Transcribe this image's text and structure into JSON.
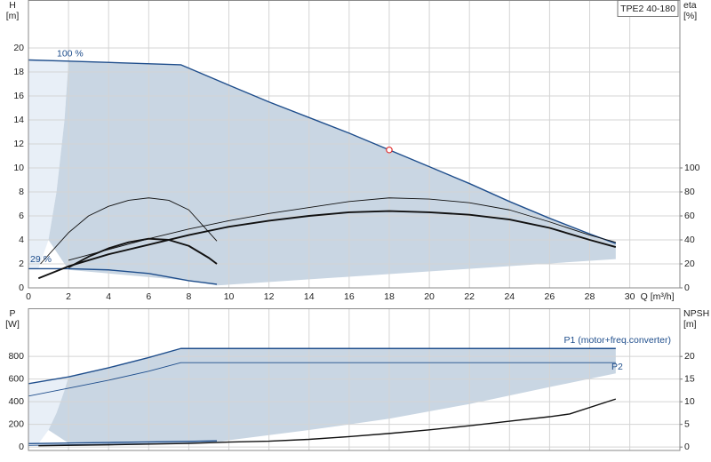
{
  "chart_data": [
    {
      "type": "line",
      "title": "TPE2 40-180",
      "y_label": [
        "H",
        "[m]"
      ],
      "y2_label": [
        "eta",
        "[%]"
      ],
      "x_label": "Q [m³/h]",
      "xlim": [
        0,
        32.5
      ],
      "xticks": [
        0,
        2,
        4,
        6,
        8,
        10,
        12,
        14,
        16,
        18,
        20,
        22,
        24,
        26,
        28,
        30
      ],
      "xtick_labels": true,
      "ylim": [
        0,
        24
      ],
      "yticks": [
        0,
        2,
        4,
        6,
        8,
        10,
        12,
        14,
        16,
        18,
        20
      ],
      "y2lim": [
        0,
        240
      ],
      "y2ticks": [
        0,
        20,
        40,
        60,
        80,
        100
      ],
      "grid": true,
      "regions": [
        {
          "color": "#e8eff7",
          "x": [
            0,
            2,
            1.8,
            1.4,
            1,
            0.5,
            0
          ],
          "values": [
            19,
            18.9,
            14,
            8,
            4,
            1.6,
            1.6
          ]
        },
        {
          "color": "#c9d6e3",
          "x": [
            2,
            7.6,
            10,
            12,
            14,
            16,
            18,
            20,
            22,
            24,
            26,
            28,
            29.3,
            29.3,
            9.4,
            8,
            6,
            4,
            2,
            1,
            1.4,
            1.8,
            2
          ],
          "values": [
            18.9,
            18.6,
            16.9,
            15.5,
            14.2,
            12.9,
            11.5,
            10.1,
            8.7,
            7.2,
            5.8,
            4.5,
            3.7,
            2.4,
            0.2,
            0.6,
            0.9,
            1.2,
            1.5,
            4,
            8,
            14,
            18.9
          ]
        }
      ],
      "series": [
        {
          "name": "100 %",
          "label_at": "start",
          "color": "#1f4e8c",
          "style": "medium",
          "x": [
            0,
            2,
            7.6,
            10,
            12,
            14,
            16,
            18,
            20,
            22,
            24,
            26,
            28,
            29.3
          ],
          "values": [
            19,
            18.9,
            18.6,
            16.9,
            15.5,
            14.2,
            12.9,
            11.5,
            10.1,
            8.7,
            7.2,
            5.8,
            4.5,
            3.7
          ]
        },
        {
          "name": "29 %",
          "label_at": "start-above",
          "color": "#1f4e8c",
          "style": "medium",
          "x": [
            0,
            2,
            4,
            6,
            7,
            8,
            9.4
          ],
          "values": [
            1.6,
            1.6,
            1.5,
            1.2,
            0.9,
            0.6,
            0.3
          ]
        },
        {
          "color": "#111111",
          "style": "thin",
          "axis": "y2",
          "x": [
            2,
            4,
            6,
            8,
            10,
            12,
            14,
            16,
            18,
            20,
            22,
            24,
            26,
            28,
            29.3
          ],
          "values": [
            23,
            32,
            41,
            49,
            56,
            62,
            67,
            72,
            75,
            74,
            71,
            65,
            55,
            44,
            38
          ]
        },
        {
          "color": "#111111",
          "style": "thick",
          "axis": "y2",
          "x": [
            0.5,
            2,
            4,
            6,
            8,
            10,
            12,
            14,
            16,
            18,
            20,
            22,
            24,
            26,
            28,
            29.3
          ],
          "values": [
            8,
            18,
            28,
            36,
            44,
            51,
            56,
            60,
            63,
            64,
            63,
            61,
            57,
            50,
            40,
            34
          ]
        },
        {
          "color": "#111111",
          "style": "thin",
          "axis": "y2",
          "x": [
            0.6,
            2,
            3,
            4,
            5,
            6,
            7,
            8,
            9.4
          ],
          "values": [
            20,
            46,
            60,
            68,
            73,
            75,
            73,
            65,
            39
          ]
        },
        {
          "color": "#111111",
          "style": "thick",
          "axis": "y2",
          "x": [
            2,
            3,
            4,
            5,
            6,
            7,
            8,
            9,
            9.4
          ],
          "values": [
            17,
            26,
            33,
            38,
            41,
            40,
            35,
            25,
            20
          ]
        }
      ],
      "duty_point": {
        "x": 18,
        "value": 11.5,
        "color": "#e03030"
      }
    },
    {
      "type": "line",
      "y_label": [
        "P",
        "[W]"
      ],
      "y2_label": [
        "NPSH",
        "[m]"
      ],
      "xlim": [
        0,
        32.5
      ],
      "xticks": [
        0,
        2,
        4,
        6,
        8,
        10,
        12,
        14,
        16,
        18,
        20,
        22,
        24,
        26,
        28,
        30
      ],
      "xtick_labels": false,
      "ylim": [
        -30,
        1225
      ],
      "yticks": [
        0,
        200,
        400,
        600,
        800
      ],
      "y2lim": [
        -0.75,
        30.625
      ],
      "y2ticks": [
        0,
        5,
        10,
        15,
        20
      ],
      "grid": true,
      "regions": [
        {
          "color": "#e8eff7",
          "x": [
            0,
            2,
            1.8,
            1.4,
            1,
            0.5,
            0
          ],
          "values": [
            560,
            620,
            500,
            300,
            150,
            30,
            30
          ]
        },
        {
          "color": "#c9d6e3",
          "x": [
            2,
            4,
            6,
            7.6,
            29.3,
            29.3,
            26,
            22,
            18,
            14,
            10,
            9.4,
            6,
            2,
            1,
            1.4,
            1.8,
            2
          ],
          "values": [
            620,
            700,
            790,
            870,
            870,
            650,
            530,
            380,
            250,
            150,
            60,
            40,
            45,
            35,
            150,
            300,
            500,
            620
          ]
        }
      ],
      "series": [
        {
          "name": "P1 (motor+freq.converter)",
          "label_at": "end-above",
          "color": "#1f4e8c",
          "style": "medium",
          "x": [
            0,
            2,
            4,
            6,
            7.6,
            29.3
          ],
          "values": [
            560,
            620,
            700,
            790,
            870,
            870
          ]
        },
        {
          "name": "P2",
          "label_at": "end-below",
          "color": "#1f4e8c",
          "style": "thin",
          "x": [
            0,
            2,
            4,
            6,
            7.6,
            29.3
          ],
          "values": [
            450,
            520,
            590,
            670,
            745,
            745
          ]
        },
        {
          "color": "#1f4e8c",
          "style": "medium",
          "x": [
            0,
            2,
            4,
            6,
            8,
            9.4
          ],
          "values": [
            30,
            35,
            40,
            45,
            50,
            55
          ]
        },
        {
          "color": "#1f4e8c",
          "style": "thin",
          "x": [
            0,
            2,
            4,
            6,
            8,
            9.4
          ],
          "values": [
            15,
            20,
            25,
            30,
            35,
            40
          ]
        },
        {
          "color": "#111111",
          "style": "medium",
          "axis": "y2",
          "x": [
            0.5,
            4,
            8,
            10,
            12,
            14,
            16,
            18,
            20,
            22,
            24,
            26,
            27,
            29.3
          ],
          "values": [
            0.3,
            0.5,
            0.8,
            1.1,
            1.3,
            1.7,
            2.3,
            3,
            3.8,
            4.7,
            5.7,
            6.7,
            7.3,
            10.6
          ]
        }
      ]
    }
  ]
}
